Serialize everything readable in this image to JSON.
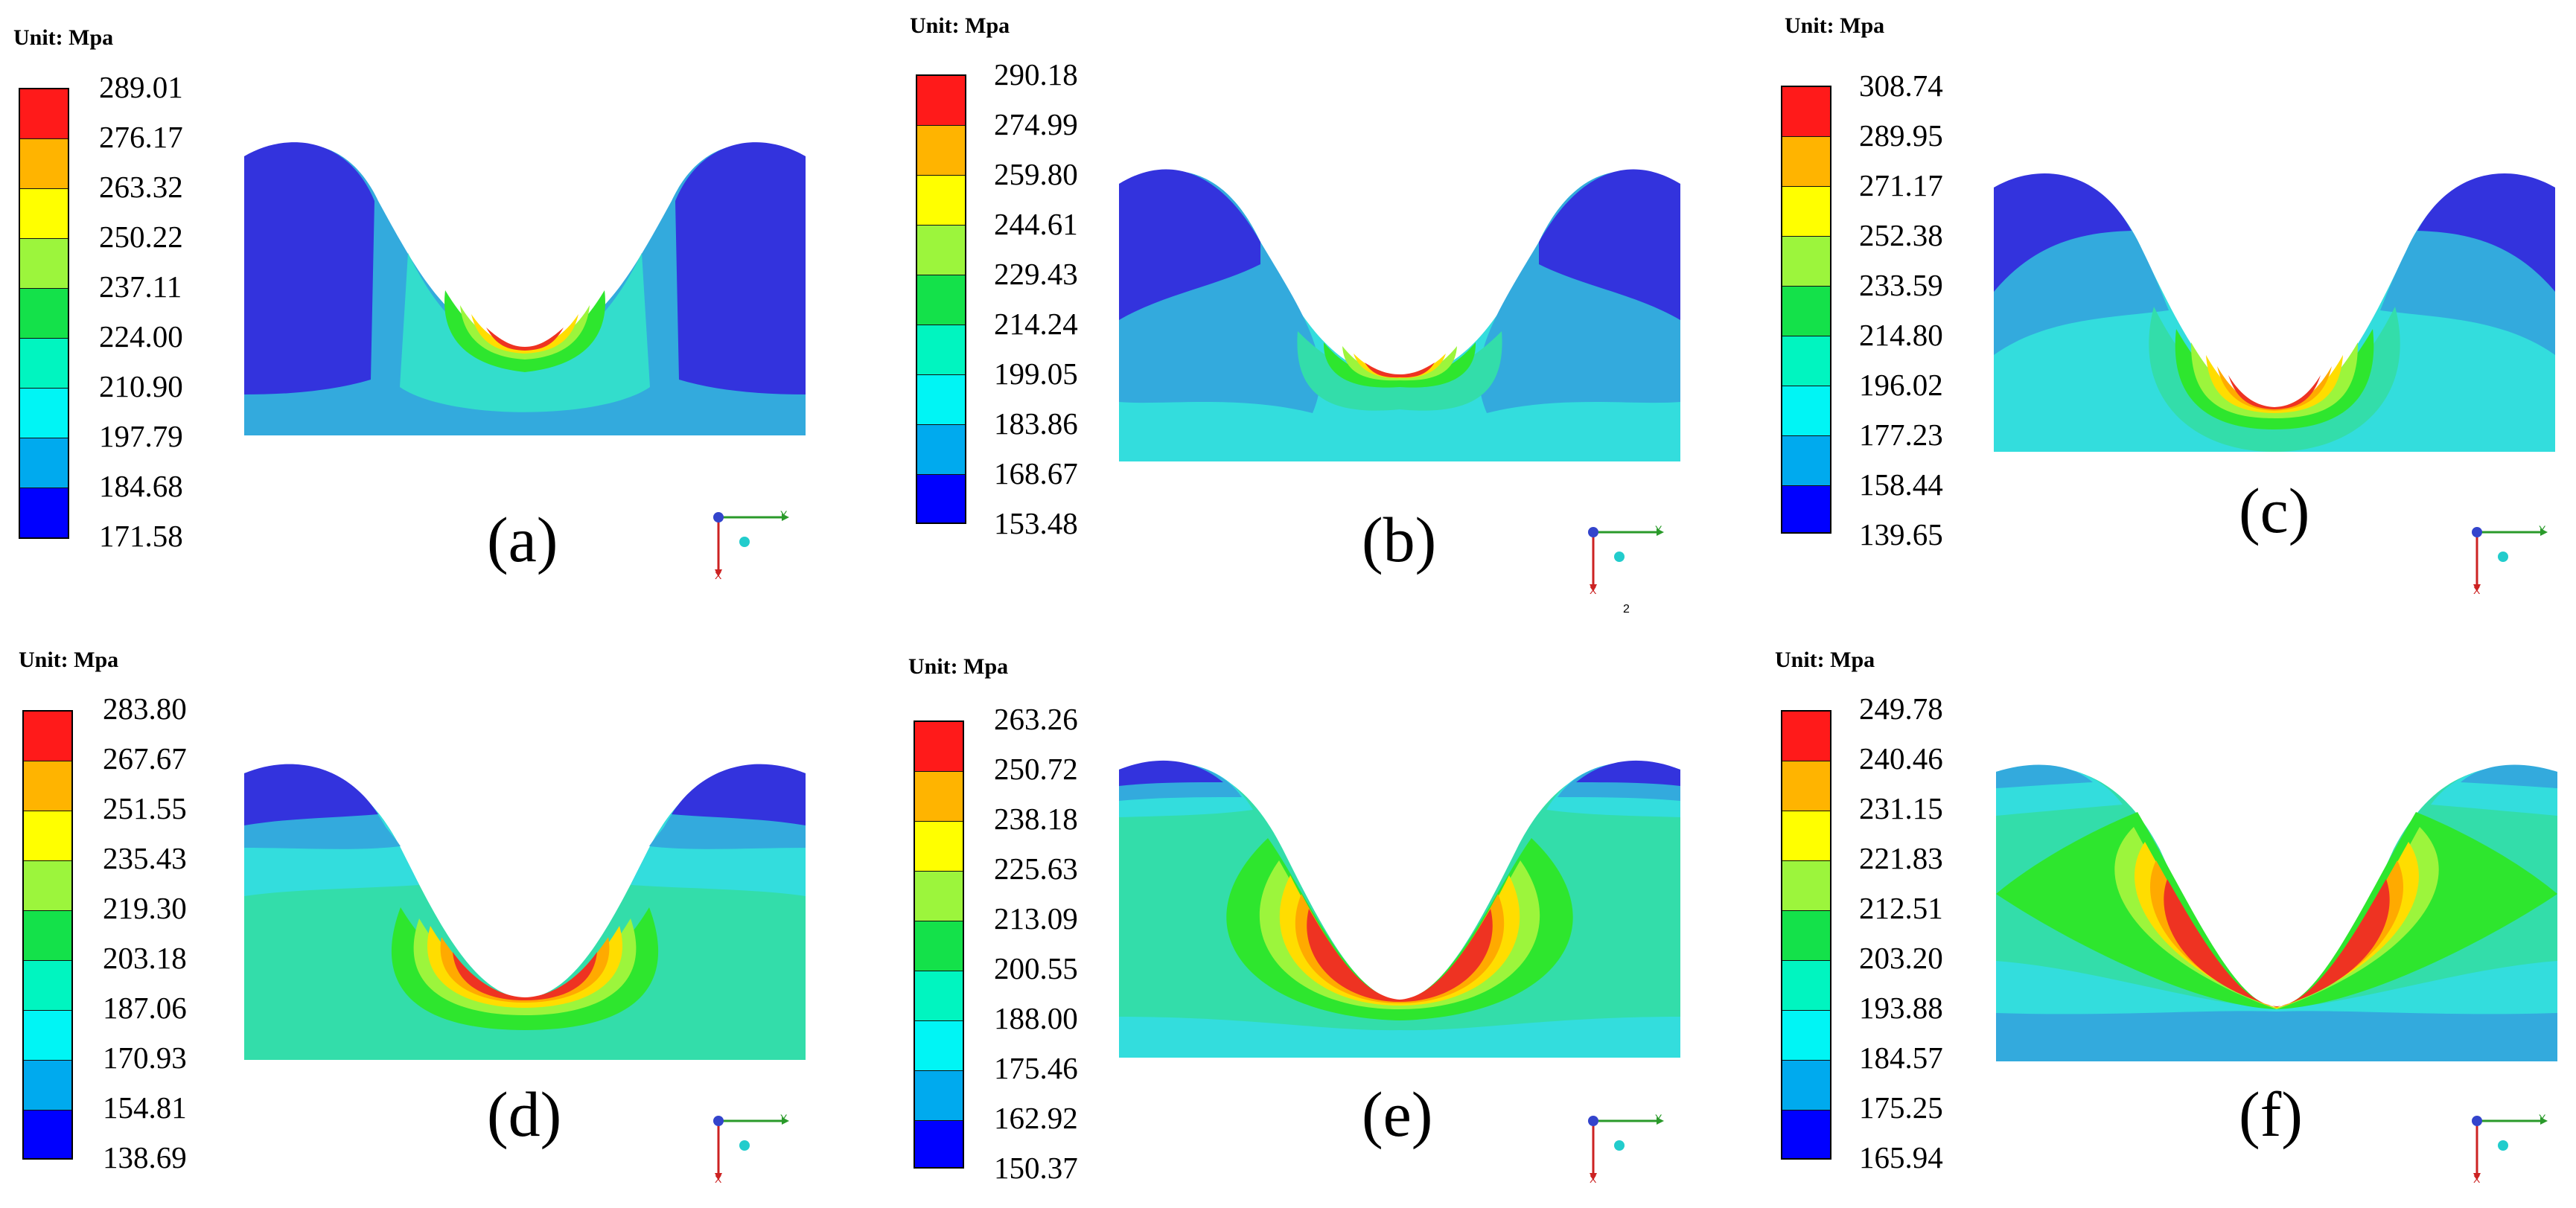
{
  "unit_label": "Unit: Mpa",
  "colors": [
    "#ff1a1a",
    "#ffb400",
    "#ffff00",
    "#9cf53c",
    "#14e14a",
    "#00f5c0",
    "#00f5f5",
    "#00aaee",
    "#0000ff"
  ],
  "colors_lower": [
    "#ff1a1a",
    "#ffb400",
    "#ffff00",
    "#9cf53c",
    "#14e14a",
    "#00f5c0",
    "#00f5f5",
    "#00aaee",
    "#0000ff"
  ],
  "axis_labels": {
    "y": "Y",
    "x": "X"
  },
  "panels": [
    {
      "caption": "(a)",
      "ticks": [
        "289.01",
        "276.17",
        "263.32",
        "250.22",
        "237.11",
        "224.00",
        "210.90",
        "197.79",
        "184.68",
        "171.58"
      ]
    },
    {
      "caption": "(b)",
      "ticks": [
        "290.18",
        "274.99",
        "259.80",
        "244.61",
        "229.43",
        "214.24",
        "199.05",
        "183.86",
        "168.67",
        "153.48"
      ],
      "extra": "2"
    },
    {
      "caption": "(c)",
      "ticks": [
        "308.74",
        "289.95",
        "271.17",
        "252.38",
        "233.59",
        "214.80",
        "196.02",
        "177.23",
        "158.44",
        "139.65"
      ]
    },
    {
      "caption": "(d)",
      "ticks": [
        "283.80",
        "267.67",
        "251.55",
        "235.43",
        "219.30",
        "203.18",
        "187.06",
        "170.93",
        "154.81",
        "138.69"
      ]
    },
    {
      "caption": "(e)",
      "ticks": [
        "263.26",
        "250.72",
        "238.18",
        "225.63",
        "213.09",
        "200.55",
        "188.00",
        "175.46",
        "162.92",
        "150.37"
      ]
    },
    {
      "caption": "(f)",
      "ticks": [
        "249.78",
        "240.46",
        "231.15",
        "221.83",
        "212.51",
        "203.20",
        "193.88",
        "184.57",
        "175.25",
        "165.94"
      ]
    }
  ]
}
